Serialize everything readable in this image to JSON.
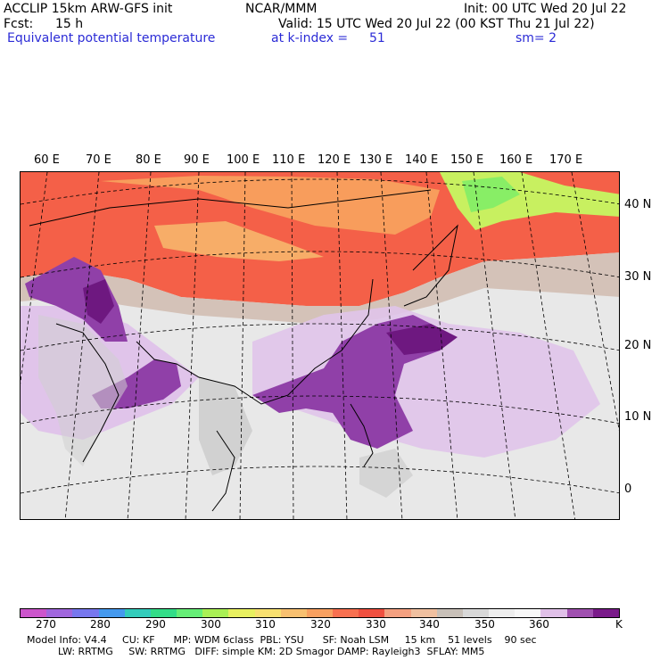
{
  "header": {
    "model": "ACCLIP 15km ARW-GFS init",
    "center": "NCAR/MMM",
    "init": "Init: 00 UTC Wed 20 Jul 22",
    "fcst_label": "Fcst:",
    "fcst_value": "15 h",
    "valid": "Valid: 15 UTC Wed 20 Jul 22 (00 KST Thu 21 Jul 22)",
    "field": "Equivalent potential temperature",
    "level": "at k-index =",
    "level_value": "51",
    "smooth": "sm= 2"
  },
  "map": {
    "lon_labels": [
      "60 E",
      "70 E",
      "80 E",
      "90 E",
      "100 E",
      "110 E",
      "120 E",
      "130 E",
      "140 E",
      "150 E",
      "160 E",
      "170 E"
    ],
    "lat_labels": [
      "40 N",
      "30 N",
      "20 N",
      "10 N",
      "0"
    ]
  },
  "colorbar": {
    "unit": "K",
    "labels": [
      "270",
      "280",
      "290",
      "300",
      "310",
      "320",
      "330",
      "340",
      "350",
      "360"
    ],
    "colors": [
      "#cc55cc",
      "#a066dd",
      "#7777ee",
      "#4499ee",
      "#33ccbb",
      "#33dd88",
      "#66ee77",
      "#aaf055",
      "#e8f060",
      "#f8e070",
      "#f8c070",
      "#f8a060",
      "#f87050",
      "#f05040",
      "#f4a080",
      "#f0c0a0",
      "#c8c0b8",
      "#d8d8d8",
      "#eeeeee",
      "#f8f8f8",
      "#e0c0e8",
      "#a050b0",
      "#7a1a8a"
    ]
  },
  "footer": {
    "line1": "Model Info: V4.4     CU: KF      MP: WDM 6class  PBL: YSU      SF: Noah LSM     15 km    51 levels    90 sec",
    "line2": "          LW: RRTMG     SW: RRTMG   DIFF: simple KM: 2D Smagor DAMP: Rayleigh3  SFLAY: MM5"
  }
}
